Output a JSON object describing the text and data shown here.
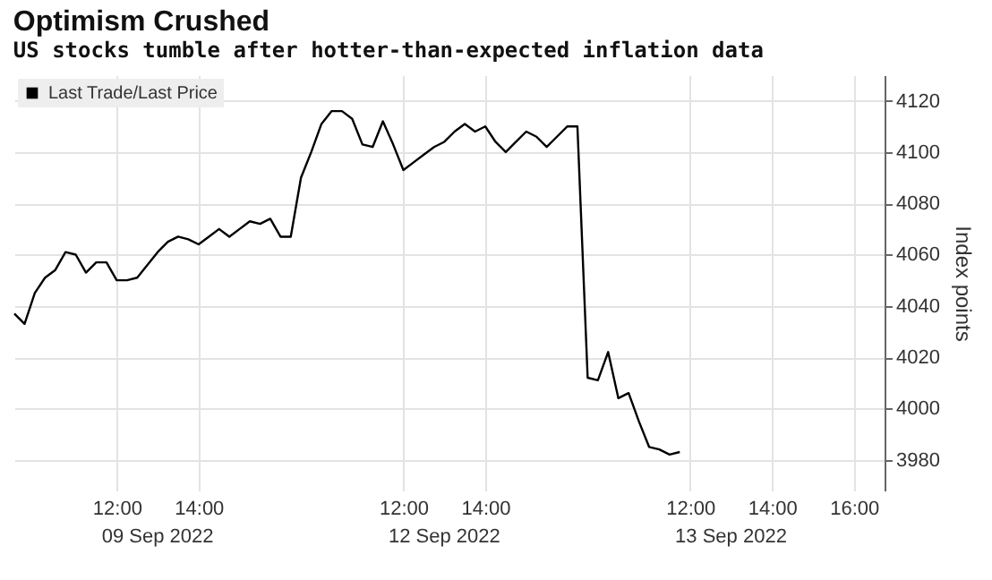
{
  "chart_data": {
    "type": "line",
    "title": "Optimism Crushed",
    "subtitle": "US stocks tumble after hotter-than-expected inflation data",
    "ylabel": "Index points",
    "annotations": [
      "09 Sep 2022",
      "12 Sep 2022",
      "13 Sep 2022"
    ],
    "categories": [
      null,
      null,
      null,
      null,
      null,
      null,
      null,
      null,
      null,
      null,
      "12:00",
      null,
      null,
      null,
      null,
      null,
      null,
      null,
      "14:00",
      null,
      null,
      null,
      null,
      null,
      null,
      null,
      null,
      null,
      null,
      null,
      null,
      null,
      null,
      null,
      null,
      null,
      null,
      null,
      "12:00",
      null,
      null,
      null,
      null,
      null,
      null,
      null,
      "14:00",
      null,
      null,
      null,
      null,
      null,
      null,
      null,
      null,
      null,
      null,
      null,
      null,
      null,
      null,
      null,
      null,
      null,
      null,
      null,
      "12:00",
      null,
      null,
      null,
      null,
      null,
      null,
      null,
      "14:00",
      null,
      null,
      null,
      null,
      null,
      null,
      null,
      "16:00",
      null,
      null,
      null
    ],
    "ylim": [
      3968,
      4130
    ],
    "yticks": [
      3980,
      4000,
      4020,
      4040,
      4060,
      4080,
      4100,
      4120
    ],
    "grid": true,
    "legend": "top left",
    "series": [
      {
        "name": "Last Trade/Last Price",
        "color": "#000000",
        "values": [
          4037,
          4033,
          4045,
          4051,
          4054,
          4061,
          4060,
          4053,
          4057,
          4057,
          4050,
          4050,
          4051,
          4056,
          4061,
          4065,
          4067,
          4066,
          4064,
          4067,
          4070,
          4067,
          4070,
          4073,
          4072,
          4074,
          4067,
          4067,
          4090,
          4100,
          4111,
          4116,
          4116,
          4113,
          4103,
          4102,
          4112,
          4103,
          4093,
          4096,
          4099,
          4102,
          4104,
          4108,
          4111,
          4108,
          4110,
          4104,
          4100,
          4104,
          4108,
          4106,
          4102,
          4106,
          4110,
          4110,
          4012,
          4011,
          4022,
          4004,
          4006,
          3995,
          3985,
          3984,
          3982,
          3983,
          null,
          null,
          null,
          null,
          null,
          null,
          null,
          null,
          null,
          null,
          null,
          null,
          null,
          null,
          null,
          null,
          null,
          null,
          null,
          null
        ]
      }
    ]
  }
}
